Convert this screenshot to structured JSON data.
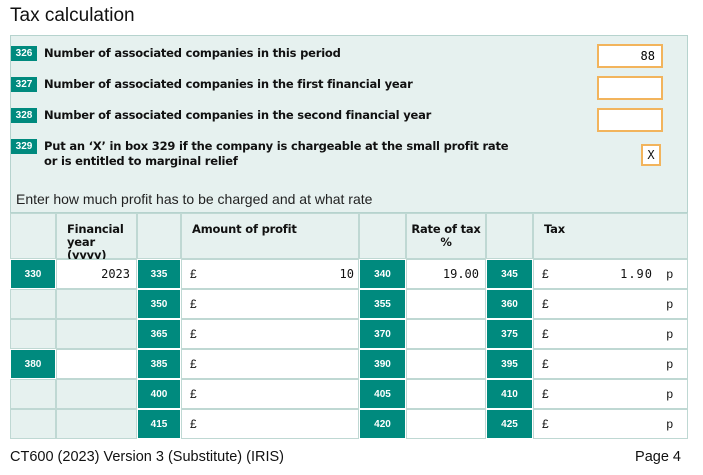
{
  "title": "Tax calculation",
  "questions": [
    {
      "box": "326",
      "text": "Number of associated companies in this period",
      "value": "88"
    },
    {
      "box": "327",
      "text": "Number of associated companies in the first financial year",
      "value": ""
    },
    {
      "box": "328",
      "text": "Number of associated companies in the second financial year",
      "value": ""
    },
    {
      "box": "329",
      "text_line1": "Put an ‘X’ in box 329 if the company is chargeable at the small profit rate",
      "text_line2": "or is entitled to marginal relief",
      "value": "X"
    }
  ],
  "enter_text": "Enter how much profit has to be charged and at what rate",
  "table": {
    "headers": {
      "financial_year_line1": "Financial",
      "financial_year_line2": "year (yyyy)",
      "amount": "Amount of profit",
      "rate_line1": "Rate of tax",
      "rate_line2": "%",
      "tax": "Tax"
    },
    "currency": "£",
    "pence": "p",
    "rows": [
      {
        "year_box": "330",
        "year": "2023",
        "amount_box": "335",
        "amount": "10",
        "rate_box": "340",
        "rate": "19.00",
        "tax_box": "345",
        "tax": "1.90"
      },
      {
        "year_box": "",
        "year": "",
        "amount_box": "350",
        "amount": "",
        "rate_box": "355",
        "rate": "",
        "tax_box": "360",
        "tax": ""
      },
      {
        "year_box": "",
        "year": "",
        "amount_box": "365",
        "amount": "",
        "rate_box": "370",
        "rate": "",
        "tax_box": "375",
        "tax": ""
      },
      {
        "year_box": "380",
        "year": "",
        "amount_box": "385",
        "amount": "",
        "rate_box": "390",
        "rate": "",
        "tax_box": "395",
        "tax": ""
      },
      {
        "year_box": "",
        "year": "",
        "amount_box": "400",
        "amount": "",
        "rate_box": "405",
        "rate": "",
        "tax_box": "410",
        "tax": ""
      },
      {
        "year_box": "",
        "year": "",
        "amount_box": "415",
        "amount": "",
        "rate_box": "420",
        "rate": "",
        "tax_box": "425",
        "tax": ""
      }
    ]
  },
  "footer": {
    "form_name": "CT600 (2023) Version 3 (Substitute) (IRIS)",
    "page": "Page 4"
  }
}
